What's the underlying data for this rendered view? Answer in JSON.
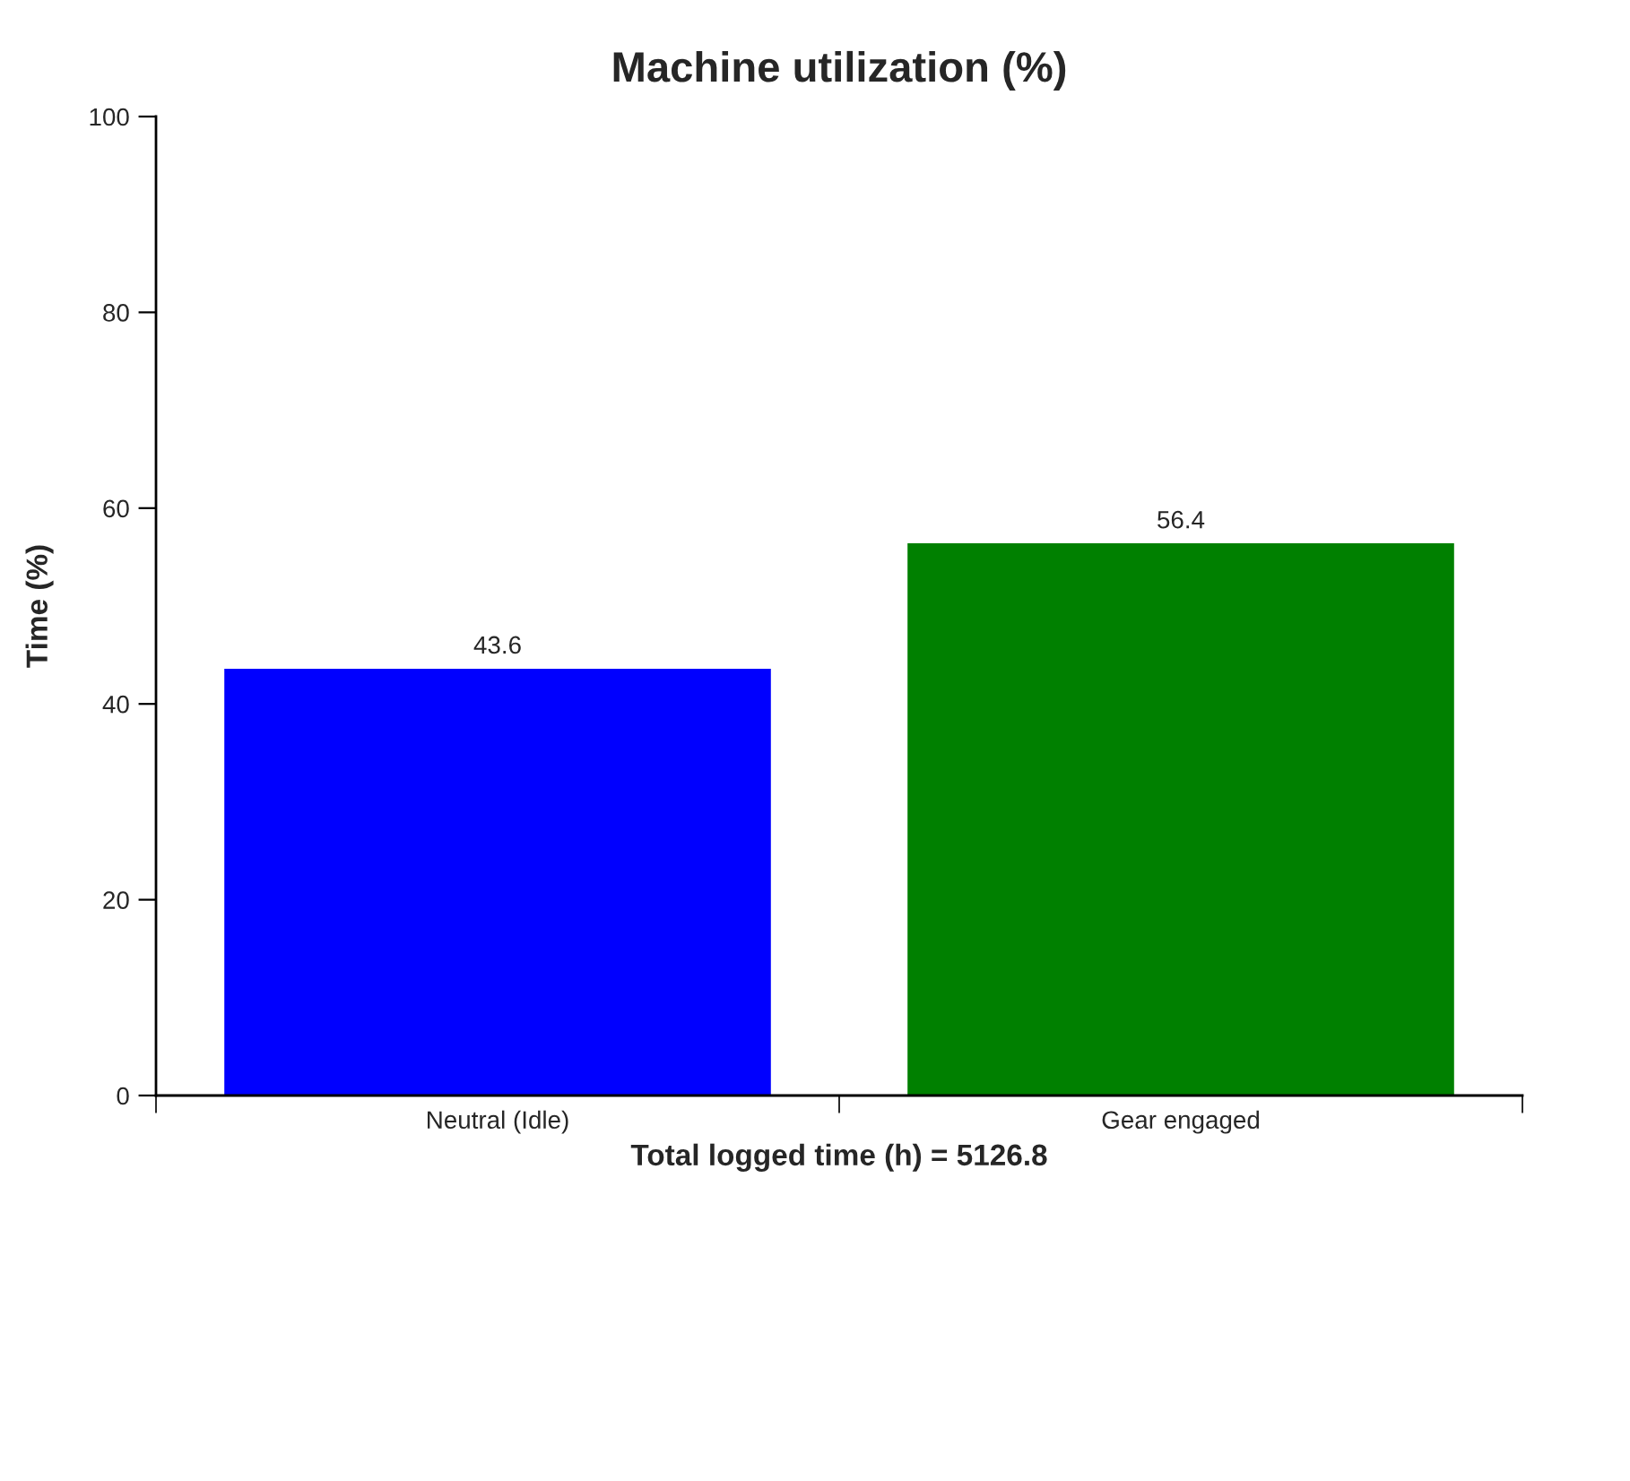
{
  "chart_data": {
    "type": "bar",
    "title": "Machine utilization (%)",
    "xlabel": "Total logged time (h) = 5126.8",
    "ylabel": "Time (%)",
    "categories": [
      "Neutral (Idle)",
      "Gear engaged"
    ],
    "values": [
      43.6,
      56.4
    ],
    "colors": [
      "#0000ff",
      "#008000"
    ],
    "ylim": [
      0,
      100
    ],
    "yticks": [
      0,
      20,
      40,
      60,
      80,
      100
    ],
    "grid": false,
    "data_labels": true
  }
}
